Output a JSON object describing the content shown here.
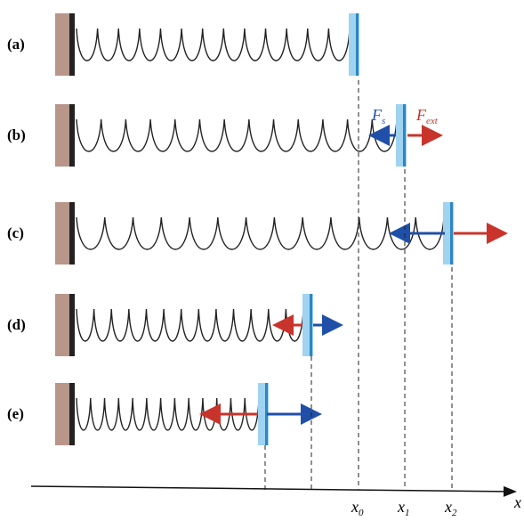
{
  "rows": [
    {
      "label": "(a)"
    },
    {
      "label": "(b)"
    },
    {
      "label": "(c)"
    },
    {
      "label": "(d)"
    },
    {
      "label": "(e)"
    }
  ],
  "forces": {
    "spring": {
      "main": "F",
      "sub": "s"
    },
    "external": {
      "main": "F",
      "sub": "ext"
    }
  },
  "axis": {
    "label": "x",
    "ticks": [
      {
        "main": "x",
        "sub": "0"
      },
      {
        "main": "x",
        "sub": "1"
      },
      {
        "main": "x",
        "sub": "2"
      }
    ]
  }
}
